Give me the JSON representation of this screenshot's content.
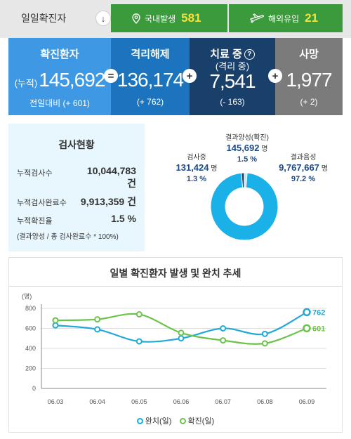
{
  "topbar": {
    "label": "일일확진자",
    "arrow_icon": "arrow-down-icon",
    "domestic": {
      "label": "국내발생",
      "value": "581"
    },
    "imported": {
      "label": "해외유입",
      "value": "21"
    }
  },
  "stats": {
    "confirmed": {
      "title": "확진환자",
      "prefix": "(누적)",
      "value": "145,692",
      "delta": "전일대비 (+ 601)"
    },
    "released": {
      "title": "격리해제",
      "value": "136,174",
      "delta": "(+ 762)"
    },
    "treatment": {
      "title": "치료 중",
      "subtitle": "(격리 중)",
      "help": "?",
      "value": "7,541",
      "delta": "(- 163)"
    },
    "death": {
      "title": "사망",
      "value": "1,977",
      "delta": "(+ 2)"
    },
    "ops": {
      "eq": "=",
      "plus1": "+",
      "plus2": "+"
    }
  },
  "tests": {
    "title": "검사현황",
    "rows": [
      {
        "label": "누적검사수",
        "value": "10,044,783",
        "unit": "건"
      },
      {
        "label": "누적검사완료수",
        "value": "9,913,359",
        "unit": "건"
      },
      {
        "label": "누적확진율",
        "value": "1.5 %"
      }
    ],
    "note": "(결과양성 / 총 검사완료수 * 100%)",
    "donut": {
      "positive": {
        "label": "결과양성(확진)",
        "number": "145,692",
        "unit": "명",
        "pct": "1.5 %",
        "fraction": 0.015
      },
      "testing": {
        "label": "검사중",
        "number": "131,424",
        "unit": "명",
        "pct": "1.3 %",
        "fraction": 0.013
      },
      "negative": {
        "label": "결과음성",
        "number": "9,767,667",
        "unit": "명",
        "pct": "97.2 %",
        "fraction": 0.972
      },
      "colors": {
        "negative": "#1ab0e8",
        "testing": "#bfe7f7",
        "positive": "#1e4a86"
      }
    }
  },
  "chart_data": {
    "type": "line",
    "title": "일별 확진환자 발생 및 완치 추세",
    "ylabel": "(명)",
    "categories": [
      "06.03",
      "06.04",
      "06.05",
      "06.06",
      "06.07",
      "06.08",
      "06.09"
    ],
    "yticks": [
      "0",
      "200",
      "400",
      "600",
      "800"
    ],
    "ylim": [
      0,
      800
    ],
    "series": [
      {
        "name": "완치(일)",
        "color": "#22a9d6",
        "values": [
          630,
          590,
          470,
          500,
          600,
          545,
          762
        ]
      },
      {
        "name": "확진(일)",
        "color": "#6cc24a",
        "values": [
          680,
          690,
          740,
          555,
          480,
          450,
          601
        ]
      }
    ],
    "end_labels": [
      "762",
      "601"
    ],
    "grid": true
  }
}
